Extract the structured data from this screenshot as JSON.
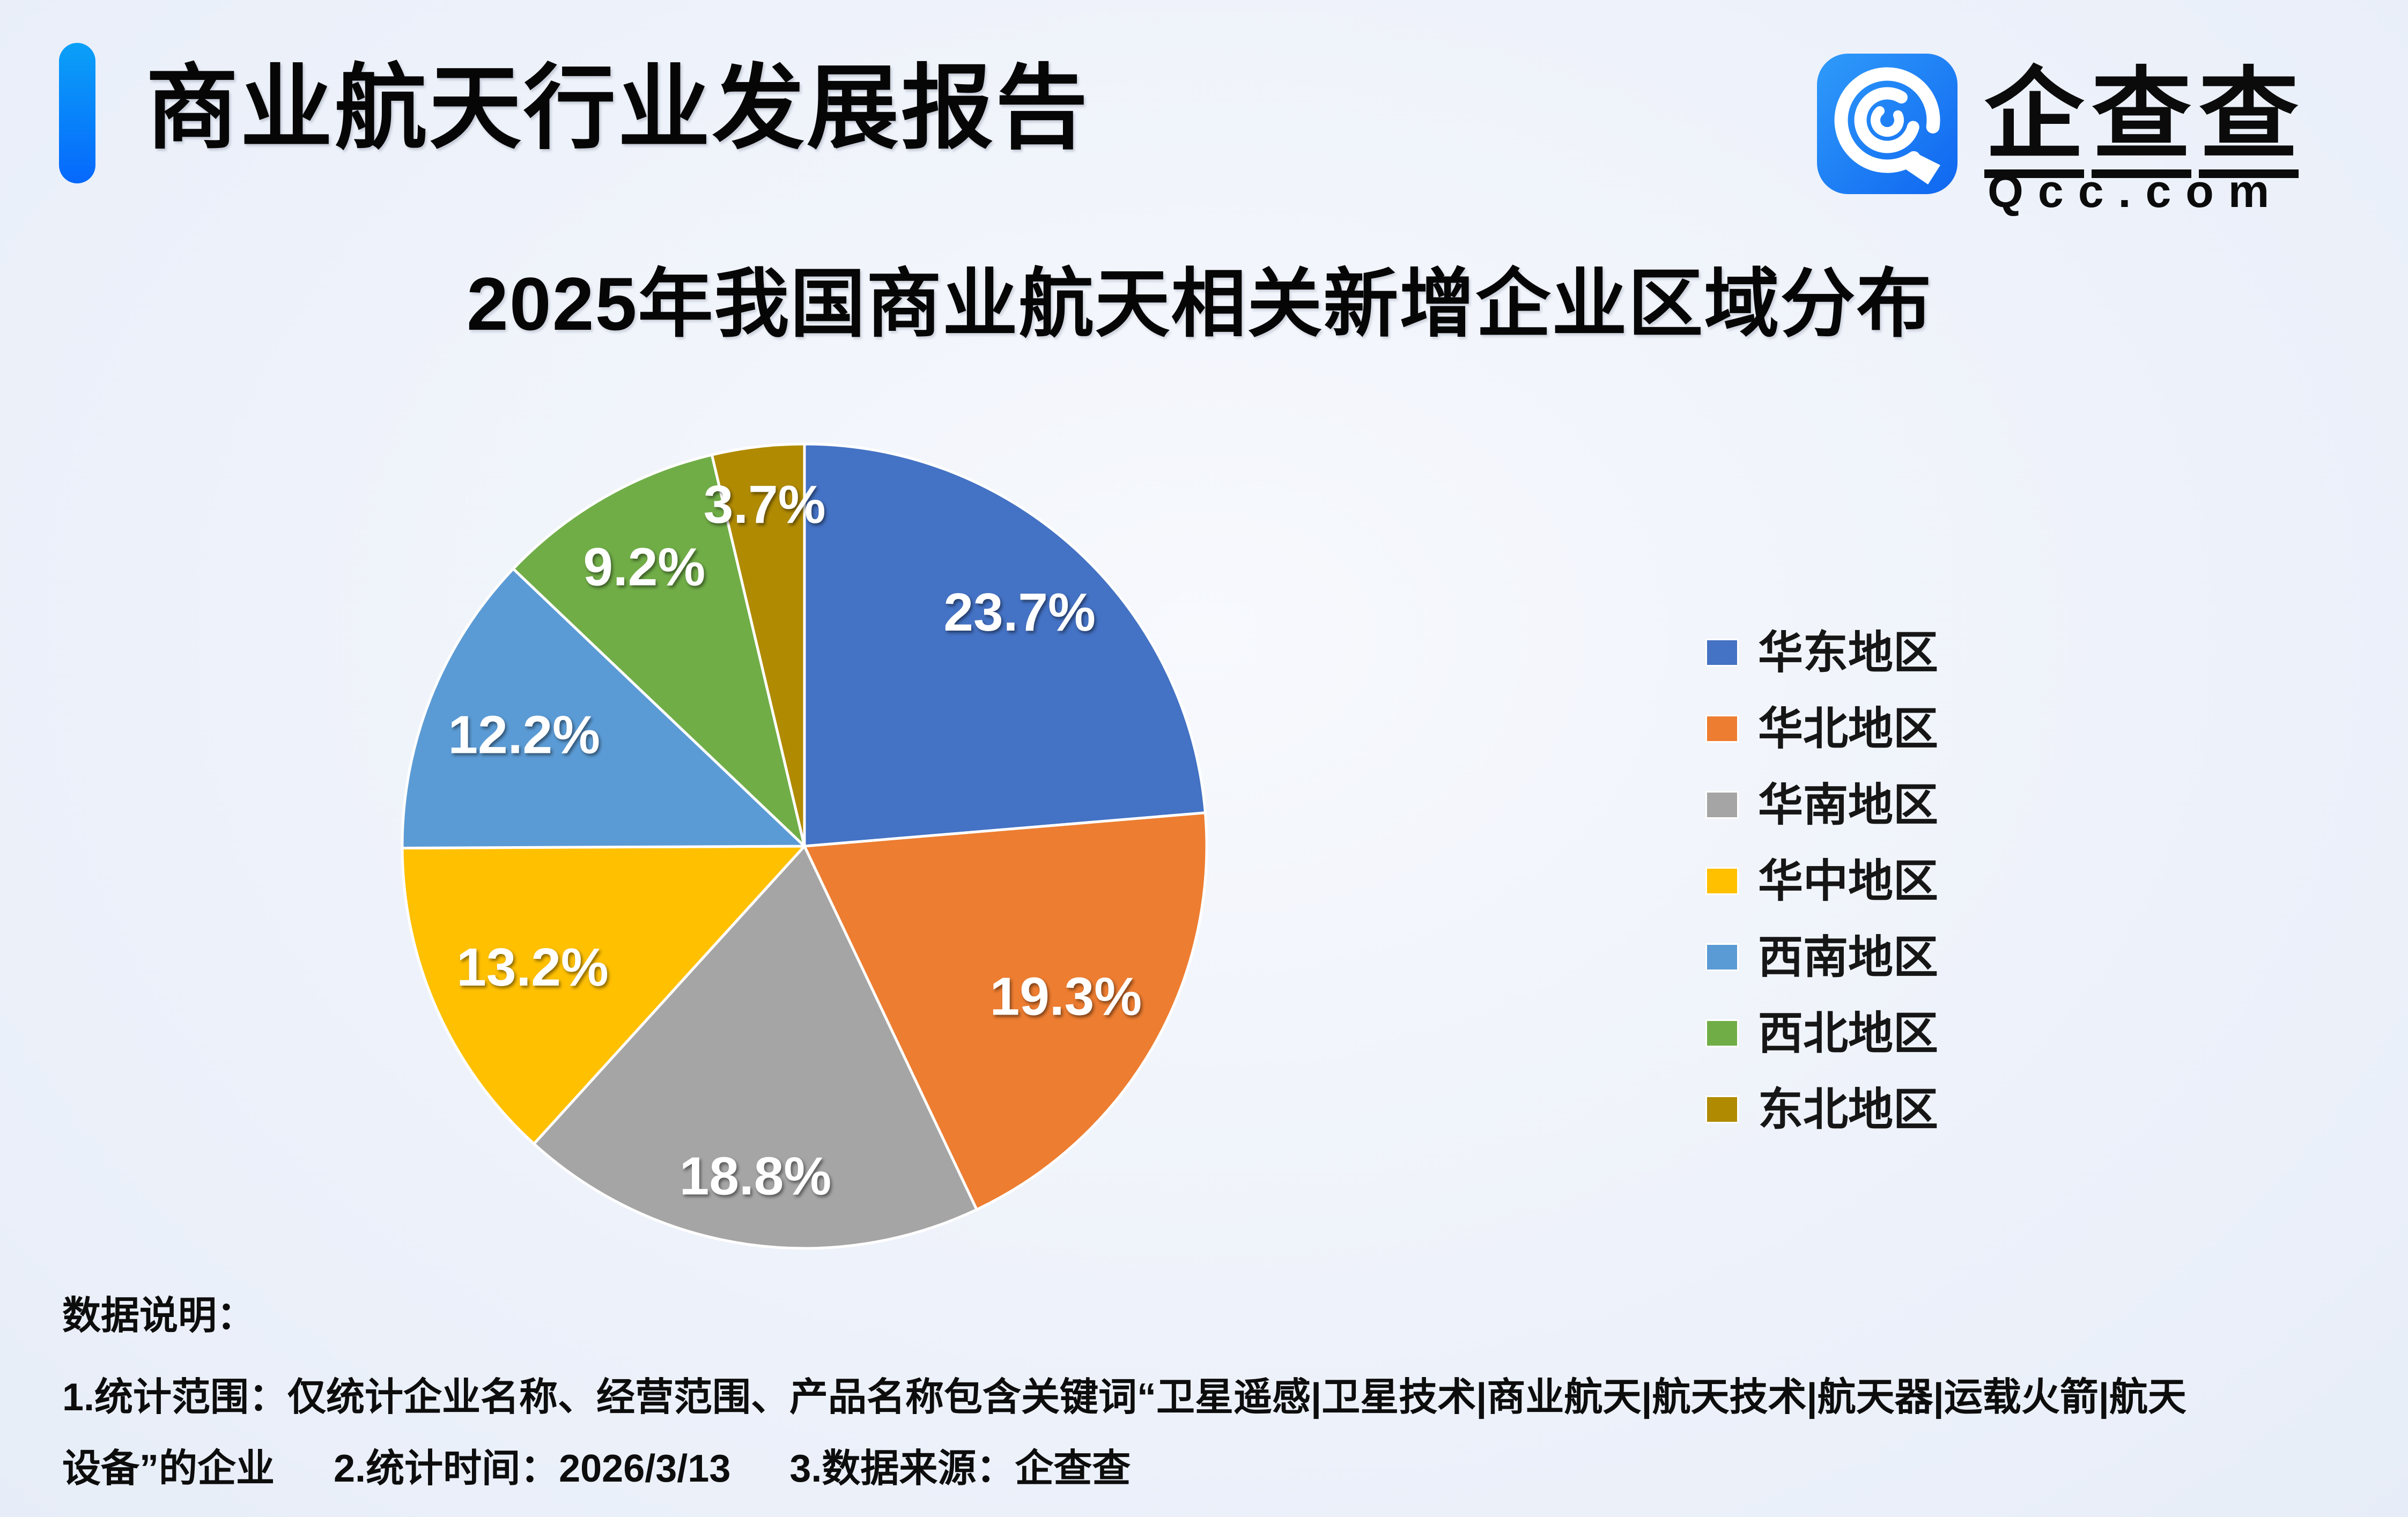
{
  "page": {
    "title": "商业航天行业发展报告"
  },
  "logo": {
    "name_chars": [
      "企",
      "查",
      "查"
    ],
    "domain": "Qcc.com"
  },
  "chart": {
    "title": "2025年我国商业航天相关新增企业区域分布"
  },
  "chart_data": {
    "type": "pie",
    "title": "2025年我国商业航天相关新增企业区域分布",
    "start_angle_deg": 0,
    "direction": "clockwise",
    "legend_position": "right",
    "data_label_format": "{value}%",
    "labels": [
      "华东地区",
      "华北地区",
      "华南地区",
      "华中地区",
      "西南地区",
      "西北地区",
      "东北地区"
    ],
    "values": [
      23.7,
      19.3,
      18.8,
      13.2,
      12.2,
      9.2,
      3.7
    ],
    "unit": "%",
    "colors": [
      "#4472C4",
      "#ED7D31",
      "#A5A5A5",
      "#FFC000",
      "#5B9BD5",
      "#70AD47",
      "#B08A00"
    ]
  },
  "notes": {
    "heading": "数据说明：",
    "items": [
      "1.统计范围：仅统计企业名称、经营范围、产品名称包含关键词“卫星遥感|卫星技术|商业航天|航天技术|航天器|运载火箭|航天设备”的企业",
      "2.统计时间：2026/3/13",
      "3.数据来源：企查查"
    ]
  },
  "colors": {
    "accent_bar_top": "#0BA0F8",
    "accent_bar_bottom": "#0668FC",
    "logo_blue": "#1E7BF7",
    "background": "#EFF3FB",
    "slice_border": "#FFFFFF",
    "label_text": "#FFFFFF"
  }
}
